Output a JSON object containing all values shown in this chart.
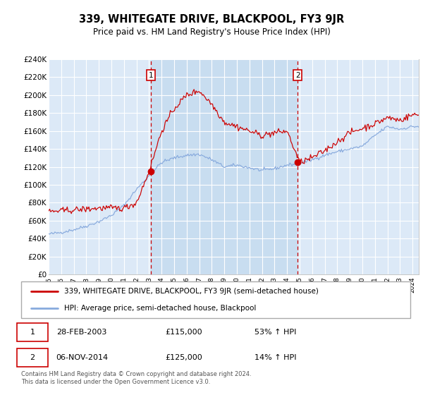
{
  "title": "339, WHITEGATE DRIVE, BLACKPOOL, FY3 9JR",
  "subtitle": "Price paid vs. HM Land Registry's House Price Index (HPI)",
  "legend_line1": "339, WHITEGATE DRIVE, BLACKPOOL, FY3 9JR (semi-detached house)",
  "legend_line2": "HPI: Average price, semi-detached house, Blackpool",
  "sale1_date": "28-FEB-2003",
  "sale1_price": "£115,000",
  "sale1_hpi": "53% ↑ HPI",
  "sale2_date": "06-NOV-2014",
  "sale2_price": "£125,000",
  "sale2_hpi": "14% ↑ HPI",
  "footer": "Contains HM Land Registry data © Crown copyright and database right 2024.\nThis data is licensed under the Open Government Licence v3.0.",
  "vline1_x": 2003.15,
  "vline2_x": 2014.85,
  "sale1_marker_y": 115000,
  "sale2_marker_y": 125000,
  "plot_bg": "#dce9f7",
  "shade_bg": "#c8ddf0",
  "red_color": "#cc0000",
  "blue_color": "#88aadd",
  "ylim": [
    0,
    240000
  ],
  "xlim": [
    1995,
    2024.5
  ],
  "hpi_years": [
    1995,
    1996,
    1997,
    1998,
    1999,
    2000,
    2001,
    2002,
    2003,
    2004,
    2005,
    2006,
    2007,
    2008,
    2009,
    2010,
    2011,
    2012,
    2013,
    2014,
    2015,
    2016,
    2017,
    2018,
    2019,
    2020,
    2021,
    2022,
    2023,
    2024
  ],
  "hpi_values": [
    45000,
    47000,
    50000,
    54000,
    59000,
    66000,
    77000,
    95000,
    110000,
    125000,
    130000,
    133000,
    134000,
    128000,
    120000,
    122000,
    119000,
    116000,
    118000,
    122000,
    124000,
    128000,
    133000,
    137000,
    140000,
    143000,
    155000,
    165000,
    162000,
    165000
  ],
  "price_years": [
    1995,
    1996,
    1997,
    1998,
    1999,
    2000,
    2001,
    2002,
    2003,
    2004,
    2005,
    2006,
    2007,
    2008,
    2009,
    2010,
    2011,
    2012,
    2013,
    2014,
    2015,
    2016,
    2017,
    2018,
    2019,
    2020,
    2021,
    2022,
    2023,
    2024
  ],
  "price_values": [
    70000,
    71000,
    72000,
    73000,
    74000,
    74000,
    74000,
    80000,
    115000,
    160000,
    185000,
    200000,
    205000,
    190000,
    170000,
    165000,
    160000,
    155000,
    158000,
    160000,
    125000,
    130000,
    138000,
    148000,
    158000,
    163000,
    168000,
    175000,
    172000,
    178000
  ]
}
